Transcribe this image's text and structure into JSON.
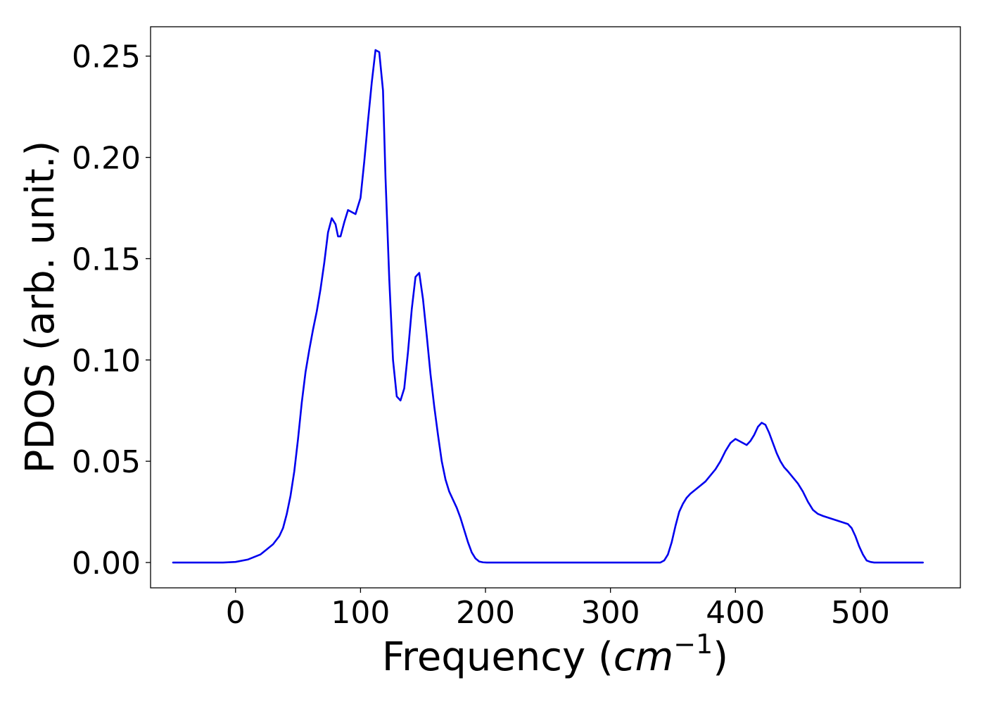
{
  "chart_data": {
    "type": "line",
    "title": "",
    "xlabel_prefix": "Frequency (",
    "xlabel_math": "cm",
    "xlabel_superscript": "−1",
    "xlabel_suffix": ")",
    "ylabel": "PDOS (arb. unit.)",
    "xlim": [
      -68,
      580
    ],
    "ylim": [
      -0.0125,
      0.2645
    ],
    "xticks": [
      0,
      100,
      200,
      300,
      400,
      500
    ],
    "xtick_labels": [
      "0",
      "100",
      "200",
      "300",
      "400",
      "500"
    ],
    "yticks": [
      0.0,
      0.05,
      0.1,
      0.15,
      0.2,
      0.25
    ],
    "ytick_labels": [
      "0.00",
      "0.05",
      "0.10",
      "0.15",
      "0.20",
      "0.25"
    ],
    "grid": false,
    "legend": "none",
    "line_color": "#0000ee",
    "series": [
      {
        "x": [
          -50,
          -10,
          0,
          10,
          20,
          25,
          30,
          35,
          38,
          41,
          44,
          47,
          50,
          53,
          56,
          59,
          62,
          65,
          68,
          71,
          74,
          77,
          80,
          82,
          84,
          87,
          90,
          93,
          96,
          100,
          103,
          106,
          109,
          112,
          115,
          118,
          120,
          123,
          126,
          129,
          132,
          135,
          138,
          141,
          144,
          147,
          150,
          153,
          156,
          159,
          162,
          165,
          168,
          171,
          174,
          177,
          180,
          183,
          186,
          189,
          192,
          195,
          198,
          201,
          205,
          210,
          250,
          300,
          340,
          343,
          346,
          349,
          352,
          355,
          358,
          361,
          364,
          368,
          372,
          376,
          380,
          384,
          388,
          392,
          396,
          400,
          403,
          406,
          409,
          412,
          415,
          418,
          421,
          424,
          427,
          430,
          433,
          436,
          439,
          442,
          446,
          450,
          454,
          458,
          462,
          466,
          470,
          475,
          480,
          485,
          490,
          493,
          496,
          499,
          502,
          505,
          508,
          511,
          515,
          530,
          550
        ],
        "y": [
          0.0,
          0.0,
          0.0003,
          0.0015,
          0.004,
          0.0065,
          0.009,
          0.013,
          0.017,
          0.024,
          0.033,
          0.045,
          0.061,
          0.079,
          0.094,
          0.105,
          0.115,
          0.124,
          0.135,
          0.148,
          0.163,
          0.17,
          0.167,
          0.161,
          0.161,
          0.168,
          0.174,
          0.173,
          0.172,
          0.18,
          0.198,
          0.218,
          0.237,
          0.253,
          0.252,
          0.233,
          0.19,
          0.14,
          0.1,
          0.082,
          0.08,
          0.086,
          0.104,
          0.125,
          0.141,
          0.143,
          0.13,
          0.112,
          0.093,
          0.077,
          0.063,
          0.05,
          0.041,
          0.035,
          0.031,
          0.027,
          0.022,
          0.016,
          0.01,
          0.005,
          0.002,
          0.0005,
          0.0001,
          0.0,
          0.0,
          0.0,
          0.0,
          0.0,
          0.0,
          0.001,
          0.004,
          0.01,
          0.018,
          0.025,
          0.029,
          0.032,
          0.034,
          0.036,
          0.038,
          0.04,
          0.043,
          0.046,
          0.05,
          0.055,
          0.059,
          0.061,
          0.06,
          0.059,
          0.058,
          0.06,
          0.063,
          0.067,
          0.069,
          0.068,
          0.064,
          0.059,
          0.054,
          0.05,
          0.047,
          0.045,
          0.042,
          0.039,
          0.035,
          0.03,
          0.026,
          0.024,
          0.023,
          0.022,
          0.021,
          0.02,
          0.019,
          0.017,
          0.013,
          0.008,
          0.004,
          0.001,
          0.0003,
          0.0,
          0.0,
          0.0,
          0.0
        ]
      }
    ]
  }
}
